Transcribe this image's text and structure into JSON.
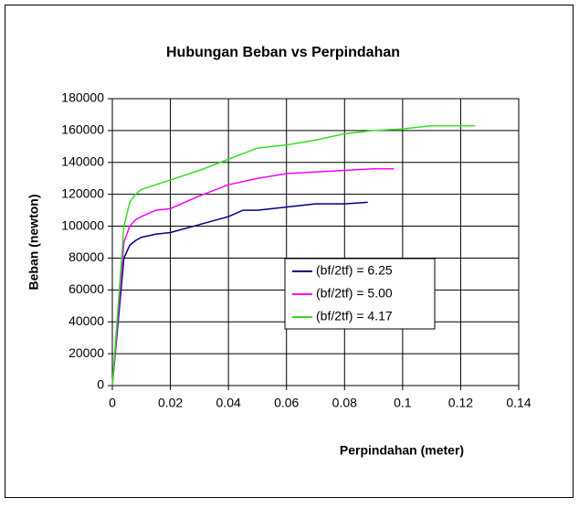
{
  "chart_data": {
    "type": "line",
    "title": "Hubungan Beban vs Perpindahan",
    "x_label": "Perpindahan (meter)",
    "y_label": "Beban  (newton)",
    "xlim": [
      0,
      0.14
    ],
    "xticks": [
      0,
      0.02,
      0.04,
      0.06,
      0.08,
      0.1,
      0.12,
      0.14
    ],
    "ylim": [
      0,
      180000
    ],
    "yticks": [
      0,
      20000,
      40000,
      60000,
      80000,
      100000,
      120000,
      140000,
      160000,
      180000
    ],
    "grid": true,
    "legend": "right",
    "series": [
      {
        "name": "(bf/2tf) = 6.25",
        "color": "#000080",
        "x": [
          0,
          0.002,
          0.004,
          0.006,
          0.008,
          0.01,
          0.015,
          0.02,
          0.03,
          0.04,
          0.045,
          0.05,
          0.06,
          0.065,
          0.07,
          0.08,
          0.088
        ],
        "values": [
          0,
          40000,
          80000,
          88000,
          91000,
          93000,
          95000,
          96000,
          101000,
          106000,
          110000,
          110000,
          112000,
          113000,
          114000,
          114000,
          115000
        ]
      },
      {
        "name": "(bf/2tf) = 5.00",
        "color": "#ff00ff",
        "x": [
          0,
          0.002,
          0.004,
          0.006,
          0.008,
          0.01,
          0.015,
          0.02,
          0.03,
          0.04,
          0.05,
          0.06,
          0.07,
          0.08,
          0.09,
          0.097
        ],
        "values": [
          0,
          45000,
          90000,
          100000,
          104000,
          106000,
          110000,
          111000,
          119000,
          126000,
          130000,
          133000,
          134000,
          135000,
          136000,
          136000
        ]
      },
      {
        "name": "(bf/2tf) = 4.17",
        "color": "#33dd22",
        "x": [
          0,
          0.002,
          0.004,
          0.006,
          0.008,
          0.01,
          0.015,
          0.02,
          0.03,
          0.04,
          0.05,
          0.06,
          0.07,
          0.08,
          0.09,
          0.1,
          0.11,
          0.125
        ],
        "values": [
          0,
          50000,
          100000,
          115000,
          120000,
          123000,
          126000,
          129000,
          135000,
          142000,
          149000,
          151000,
          154000,
          158000,
          160000,
          161000,
          163000,
          163000
        ]
      }
    ]
  }
}
